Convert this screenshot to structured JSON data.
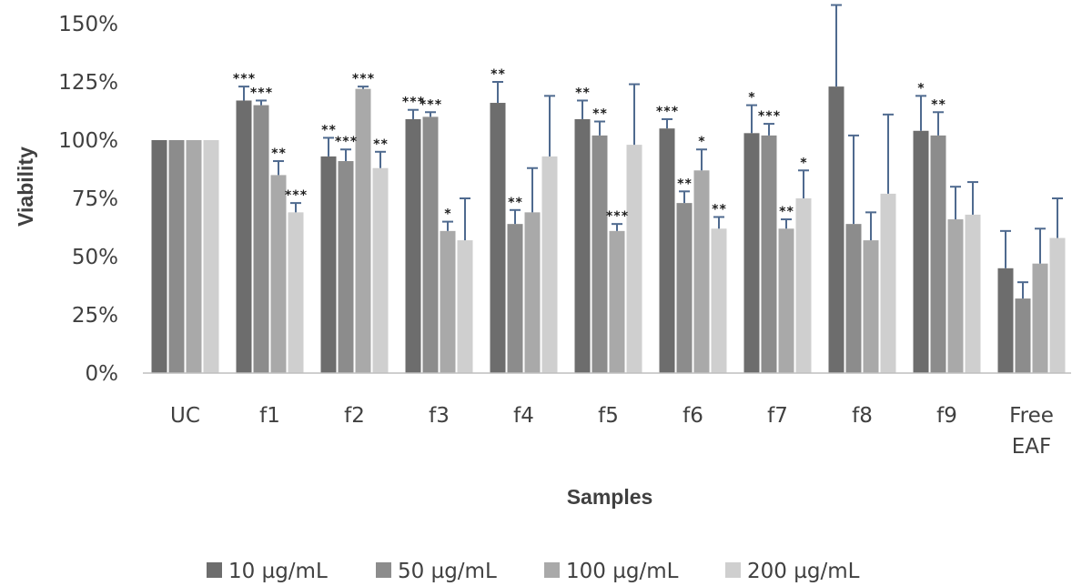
{
  "chart_data": {
    "type": "bar",
    "title": "",
    "xlabel": "Samples",
    "ylabel": "Viability",
    "ylim": [
      0,
      150
    ],
    "yticks": [
      "0%",
      "25%",
      "50%",
      "75%",
      "100%",
      "125%",
      "150%"
    ],
    "grid": false,
    "legend_position": "bottom",
    "categories": [
      [
        "UC"
      ],
      [
        "f1"
      ],
      [
        "f2"
      ],
      [
        "f3"
      ],
      [
        "f4"
      ],
      [
        "f5"
      ],
      [
        "f6"
      ],
      [
        "f7"
      ],
      [
        "f8"
      ],
      [
        "f9"
      ],
      [
        "Free",
        "EAF"
      ]
    ],
    "series": [
      {
        "name": "10 µg/mL",
        "color": "#6d6d6d",
        "values": [
          100,
          117,
          93,
          109,
          116,
          109,
          105,
          103,
          123,
          104,
          45
        ],
        "errors": [
          0,
          6,
          8,
          4,
          9,
          8,
          4,
          12,
          35,
          15,
          16
        ],
        "significance": [
          "",
          "***",
          "**",
          "***",
          "**",
          "**",
          "***",
          "*",
          "",
          "*",
          ""
        ]
      },
      {
        "name": "50 µg/mL",
        "color": "#8c8c8c",
        "values": [
          100,
          115,
          91,
          110,
          64,
          102,
          73,
          102,
          64,
          102,
          32
        ],
        "errors": [
          0,
          2,
          5,
          2,
          6,
          6,
          5,
          5,
          38,
          10,
          7
        ],
        "significance": [
          "",
          "***",
          "***",
          "***",
          "**",
          "**",
          "**",
          "***",
          "",
          "**",
          ""
        ]
      },
      {
        "name": "100 µg/mL",
        "color": "#a9a9a9",
        "values": [
          100,
          85,
          122,
          61,
          69,
          61,
          87,
          62,
          57,
          66,
          47
        ],
        "errors": [
          0,
          6,
          1,
          4,
          19,
          3,
          9,
          4,
          12,
          14,
          15
        ],
        "significance": [
          "",
          "**",
          "***",
          "*",
          "",
          "***",
          "*",
          "**",
          "",
          "",
          ""
        ]
      },
      {
        "name": "200 µg/mL",
        "color": "#cfcfcf",
        "values": [
          100,
          69,
          88,
          57,
          93,
          98,
          62,
          75,
          77,
          68,
          58
        ],
        "errors": [
          0,
          4,
          7,
          18,
          26,
          26,
          5,
          12,
          34,
          14,
          17
        ],
        "significance": [
          "",
          "***",
          "**",
          "",
          "",
          "",
          "**",
          "*",
          "",
          "",
          ""
        ]
      }
    ]
  },
  "colors": {
    "error_bar": "#4f6a8f",
    "axis": "#bfbfbf",
    "text": "#404040"
  }
}
